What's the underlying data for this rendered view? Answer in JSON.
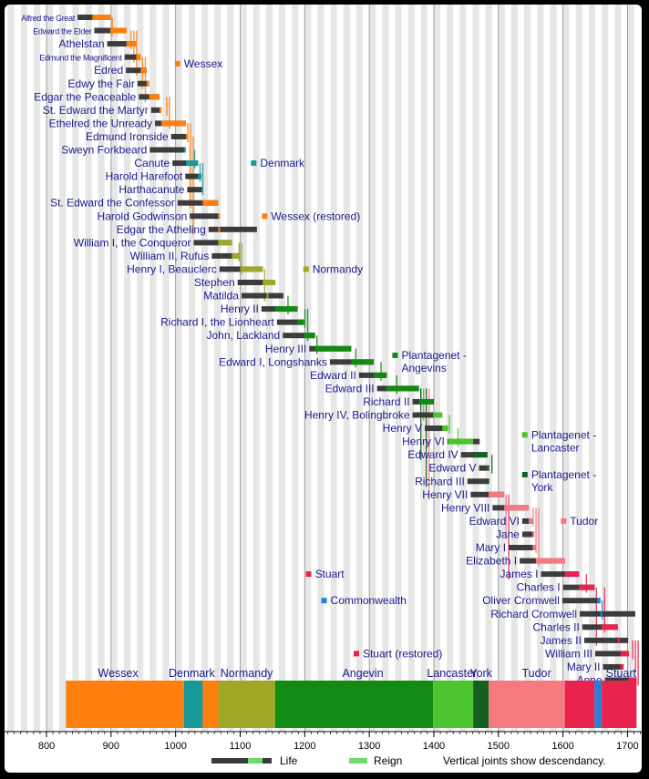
{
  "chart_data": {
    "type": "timeline",
    "xlim": [
      735,
      1722
    ],
    "x_ticks": [
      800,
      900,
      1000,
      1100,
      1200,
      1300,
      1400,
      1500,
      1600,
      1700
    ],
    "monarchs": [
      {
        "name": "Alfred the Great",
        "birth": 848,
        "death": 899,
        "reign": [
          871,
          899
        ],
        "color": "#ff7f0e",
        "small": true
      },
      {
        "name": "Edward the Elder",
        "birth": 874,
        "death": 924,
        "reign": [
          899,
          924
        ],
        "color": "#ff7f0e",
        "small": true
      },
      {
        "name": "Athelstan",
        "birth": 894,
        "death": 939,
        "reign": [
          924,
          939
        ],
        "color": "#ff7f0e"
      },
      {
        "name": "Edmund the Magnificent",
        "birth": 921,
        "death": 946,
        "reign": [
          939,
          946
        ],
        "color": "#ff7f0e",
        "small": true
      },
      {
        "name": "Edred",
        "birth": 923,
        "death": 955,
        "reign": [
          946,
          955
        ],
        "color": "#ff7f0e"
      },
      {
        "name": "Edwy the Fair",
        "birth": 941,
        "death": 959,
        "reign": [
          955,
          959
        ],
        "color": "#ff7f0e"
      },
      {
        "name": "Edgar the Peaceable",
        "birth": 943,
        "death": 975,
        "reign": [
          959,
          975
        ],
        "color": "#ff7f0e"
      },
      {
        "name": "St. Edward the Martyr",
        "birth": 962,
        "death": 978,
        "reign": [
          975,
          978
        ],
        "color": "#ff7f0e"
      },
      {
        "name": "Ethelred the Unready",
        "birth": 968,
        "death": 1016,
        "reign": [
          978,
          1016
        ],
        "color": "#ff7f0e"
      },
      {
        "name": "Edmund Ironside",
        "birth": 993,
        "death": 1016,
        "reign": [
          1016,
          1016
        ],
        "color": "#ff7f0e"
      },
      {
        "name": "Sweyn Forkbeard",
        "birth": 960,
        "death": 1014,
        "reign": [
          1013,
          1014
        ],
        "color": "#17999a"
      },
      {
        "name": "Canute",
        "birth": 995,
        "death": 1035,
        "reign": [
          1016,
          1035
        ],
        "color": "#17999a"
      },
      {
        "name": "Harold Harefoot",
        "birth": 1015,
        "death": 1040,
        "reign": [
          1035,
          1040
        ],
        "color": "#17999a"
      },
      {
        "name": "Harthacanute",
        "birth": 1018,
        "death": 1042,
        "reign": [
          1040,
          1042
        ],
        "color": "#17999a"
      },
      {
        "name": "St. Edward the Confessor",
        "birth": 1003,
        "death": 1066,
        "reign": [
          1042,
          1066
        ],
        "color": "#ff7f0e"
      },
      {
        "name": "Harold Godwinson",
        "birth": 1022,
        "death": 1066,
        "reign": [
          1066,
          1066
        ],
        "color": "#ff7f0e"
      },
      {
        "name": "Edgar the Atheling",
        "birth": 1051,
        "death": 1126,
        "reign": [
          1066,
          1066
        ],
        "color": "#ff7f0e"
      },
      {
        "name": "William I, the Conqueror",
        "birth": 1028,
        "death": 1087,
        "reign": [
          1066,
          1087
        ],
        "color": "#a0a626"
      },
      {
        "name": "William II, Rufus",
        "birth": 1056,
        "death": 1100,
        "reign": [
          1087,
          1100
        ],
        "color": "#a0a626"
      },
      {
        "name": "Henry I, Beauclerc",
        "birth": 1068,
        "death": 1135,
        "reign": [
          1100,
          1135
        ],
        "color": "#a0a626"
      },
      {
        "name": "Stephen",
        "birth": 1096,
        "death": 1154,
        "reign": [
          1135,
          1154
        ],
        "color": "#a0a626"
      },
      {
        "name": "Matilda",
        "birth": 1102,
        "death": 1167,
        "reign": [
          1141,
          1141
        ],
        "color": "#a0a626"
      },
      {
        "name": "Henry II",
        "birth": 1133,
        "death": 1189,
        "reign": [
          1154,
          1189
        ],
        "color": "#138a13"
      },
      {
        "name": "Richard I, the Lionheart",
        "birth": 1157,
        "death": 1199,
        "reign": [
          1189,
          1199
        ],
        "color": "#138a13"
      },
      {
        "name": "John, Lackland",
        "birth": 1166,
        "death": 1216,
        "reign": [
          1199,
          1216
        ],
        "color": "#138a13"
      },
      {
        "name": "Henry III",
        "birth": 1207,
        "death": 1272,
        "reign": [
          1216,
          1272
        ],
        "color": "#138a13"
      },
      {
        "name": "Edward I, Longshanks",
        "birth": 1239,
        "death": 1307,
        "reign": [
          1272,
          1307
        ],
        "color": "#138a13"
      },
      {
        "name": "Edward II",
        "birth": 1284,
        "death": 1327,
        "reign": [
          1307,
          1327
        ],
        "color": "#138a13"
      },
      {
        "name": "Edward III",
        "birth": 1312,
        "death": 1377,
        "reign": [
          1327,
          1377
        ],
        "color": "#138a13"
      },
      {
        "name": "Richard II",
        "birth": 1367,
        "death": 1400,
        "reign": [
          1377,
          1399
        ],
        "color": "#138a13"
      },
      {
        "name": "Henry IV, Bolingbroke",
        "birth": 1367,
        "death": 1413,
        "reign": [
          1399,
          1413
        ],
        "color": "#4cc430"
      },
      {
        "name": "Henry V",
        "birth": 1386,
        "death": 1422,
        "reign": [
          1413,
          1422
        ],
        "color": "#4cc430"
      },
      {
        "name": "Henry VI",
        "birth": 1421,
        "death": 1471,
        "reign": [
          1422,
          1461
        ],
        "color": "#4cc430"
      },
      {
        "name": "Edward IV",
        "birth": 1442,
        "death": 1483,
        "reign": [
          1461,
          1483
        ],
        "color": "#14601e"
      },
      {
        "name": "Edward V",
        "birth": 1470,
        "death": 1483,
        "reign": [
          1483,
          1483
        ],
        "color": "#14601e"
      },
      {
        "name": "Richard III",
        "birth": 1452,
        "death": 1485,
        "reign": [
          1483,
          1485
        ],
        "color": "#14601e"
      },
      {
        "name": "Henry VII",
        "birth": 1457,
        "death": 1509,
        "reign": [
          1485,
          1509
        ],
        "color": "#f47a80"
      },
      {
        "name": "Henry VIII",
        "birth": 1491,
        "death": 1547,
        "reign": [
          1509,
          1547
        ],
        "color": "#f47a80"
      },
      {
        "name": "Edward VI",
        "birth": 1537,
        "death": 1553,
        "reign": [
          1547,
          1553
        ],
        "color": "#f47a80"
      },
      {
        "name": "Jane",
        "birth": 1537,
        "death": 1554,
        "reign": [
          1553,
          1553
        ],
        "color": "#f47a80"
      },
      {
        "name": "Mary I",
        "birth": 1516,
        "death": 1558,
        "reign": [
          1553,
          1558
        ],
        "color": "#f47a80"
      },
      {
        "name": "Elizabeth I",
        "birth": 1533,
        "death": 1603,
        "reign": [
          1558,
          1603
        ],
        "color": "#f47a80"
      },
      {
        "name": "James I",
        "birth": 1566,
        "death": 1625,
        "reign": [
          1603,
          1625
        ],
        "color": "#e8234e"
      },
      {
        "name": "Charles I",
        "birth": 1600,
        "death": 1649,
        "reign": [
          1625,
          1649
        ],
        "color": "#e8234e"
      },
      {
        "name": "Oliver Cromwell",
        "birth": 1599,
        "death": 1658,
        "reign": [
          1653,
          1658
        ],
        "color": "#2a7fd4"
      },
      {
        "name": "Richard Cromwell",
        "birth": 1626,
        "death": 1712,
        "reign": [
          1658,
          1659
        ],
        "color": "#2a7fd4"
      },
      {
        "name": "Charles II",
        "birth": 1630,
        "death": 1685,
        "reign": [
          1660,
          1685
        ],
        "color": "#e8234e"
      },
      {
        "name": "James II",
        "birth": 1633,
        "death": 1701,
        "reign": [
          1685,
          1688
        ],
        "color": "#e8234e"
      },
      {
        "name": "William III",
        "birth": 1650,
        "death": 1702,
        "reign": [
          1689,
          1702
        ],
        "color": "#e8234e"
      },
      {
        "name": "Mary II",
        "birth": 1662,
        "death": 1694,
        "reign": [
          1689,
          1694
        ],
        "color": "#e8234e"
      },
      {
        "name": "Anne",
        "birth": 1665,
        "death": 1714,
        "reign": [
          1702,
          1714
        ],
        "color": "#e8234e"
      }
    ],
    "houses_legend": [
      {
        "name": "Wessex",
        "color": "#ff7f0e",
        "at_year": 1003,
        "row": 3.5
      },
      {
        "name": "Denmark",
        "color": "#17999a",
        "at_year": 1121,
        "row": 11
      },
      {
        "name": "Wessex (restored)",
        "color": "#ff7f0e",
        "at_year": 1138,
        "row": 15
      },
      {
        "name": "Normandy",
        "color": "#a0a626",
        "at_year": 1202,
        "row": 19
      },
      {
        "name": "Plantagenet - Angevins",
        "color": "#138a13",
        "at_year": 1340,
        "row": 25.5,
        "lines": [
          "Plantagenet -",
          "Angevins"
        ]
      },
      {
        "name": "Plantagenet - Lancaster",
        "color": "#4cc430",
        "at_year": 1541,
        "row": 31.5,
        "lines": [
          "Plantagenet -",
          "Lancaster"
        ]
      },
      {
        "name": "Plantagenet - York",
        "color": "#14601e",
        "at_year": 1541,
        "row": 34.5,
        "lines": [
          "Plantagenet -",
          "York"
        ]
      },
      {
        "name": "Tudor",
        "color": "#f47a80",
        "at_year": 1601,
        "row": 38
      },
      {
        "name": "Stuart",
        "color": "#e8234e",
        "at_year": 1206,
        "row": 42
      },
      {
        "name": "Commonwealth",
        "color": "#2a7fd4",
        "at_year": 1230,
        "row": 44
      },
      {
        "name": "Stuart (restored)",
        "color": "#e8234e",
        "at_year": 1280,
        "row": 48
      }
    ],
    "era_bar": [
      {
        "name": "Wessex",
        "start": 830,
        "end": 1013,
        "color": "#ff7f0e",
        "label_at": 911
      },
      {
        "name": "Denmark",
        "start": 1013,
        "end": 1042,
        "color": "#17999a",
        "label_at": 1025
      },
      {
        "name": "",
        "start": 1042,
        "end": 1066,
        "color": "#ff7f0e",
        "label_at": 1054
      },
      {
        "name": "Normandy",
        "start": 1066,
        "end": 1154,
        "color": "#a0a626",
        "label_at": 1110
      },
      {
        "name": "Angevin",
        "start": 1154,
        "end": 1399,
        "color": "#138a13",
        "label_at": 1290
      },
      {
        "name": "Lancaster",
        "start": 1399,
        "end": 1461,
        "color": "#4cc430",
        "label_at": 1428
      },
      {
        "name": "York",
        "start": 1461,
        "end": 1485,
        "color": "#14601e",
        "label_at": 1473
      },
      {
        "name": "Tudor",
        "start": 1485,
        "end": 1603,
        "color": "#f47a80",
        "label_at": 1559
      },
      {
        "name": "",
        "start": 1603,
        "end": 1649,
        "color": "#e8234e",
        "label_at": 1626
      },
      {
        "name": "",
        "start": 1649,
        "end": 1660,
        "color": "#2a7fd4",
        "label_at": 1654
      },
      {
        "name": "Stuart",
        "start": 1660,
        "end": 1714,
        "color": "#e8234e",
        "label_at": 1690
      }
    ],
    "legend": {
      "life": "Life",
      "reign": "Reign",
      "note": "Vertical joints show descendancy."
    }
  }
}
